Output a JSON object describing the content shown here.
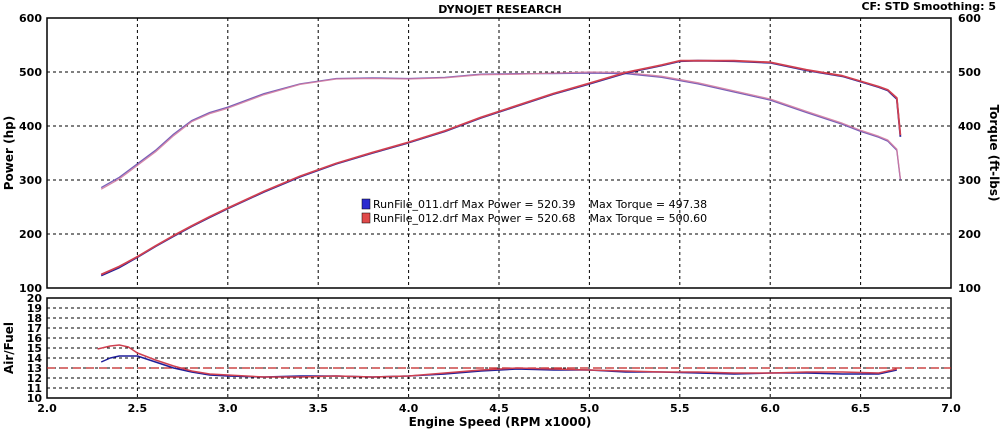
{
  "header": {
    "title": "DYNOJET RESEARCH",
    "settings": "CF: STD  Smoothing: 5"
  },
  "colors": {
    "run1": "#1f1f9a",
    "run2": "#d04050",
    "run1_swatch": "#2a2ad0",
    "run2_swatch": "#e04a4a",
    "grid": "#000000",
    "reference_line": "#c02020"
  },
  "legend": {
    "rows": [
      {
        "text": "RunFile_011.drf Max Power = 520.39    Max Torque = 497.38"
      },
      {
        "text": "RunFile_012.drf Max Power = 520.68    Max Torque = 500.60"
      }
    ]
  },
  "chart_data": [
    {
      "type": "line",
      "title": "DYNOJET RESEARCH",
      "xlabel": "",
      "ylabel": "Power (hp)",
      "y2label": "Torque (ft-lbs)",
      "xlim": [
        2.0,
        7.0
      ],
      "ylim": [
        100,
        600
      ],
      "y2lim": [
        100,
        600
      ],
      "y_ticks": [
        "100",
        "200",
        "300",
        "400",
        "500",
        "600"
      ],
      "y2_ticks": [
        "100",
        "200",
        "300",
        "400",
        "500",
        "600"
      ],
      "grid": true,
      "legend_position": "center",
      "series": [
        {
          "name": "RunFile_011.drf",
          "measure": "power",
          "x": [
            2.3,
            2.4,
            2.5,
            2.6,
            2.7,
            2.8,
            2.9,
            3.0,
            3.2,
            3.4,
            3.6,
            3.8,
            4.0,
            4.2,
            4.4,
            4.6,
            4.8,
            5.0,
            5.2,
            5.4,
            5.5,
            5.6,
            5.8,
            6.0,
            6.2,
            6.4,
            6.5,
            6.6,
            6.65,
            6.7,
            6.72
          ],
          "y": [
            123,
            138,
            157,
            177,
            196,
            214,
            231,
            247,
            278,
            306,
            330,
            350,
            369,
            390,
            415,
            437,
            459,
            478,
            498,
            512,
            520,
            521,
            520,
            517,
            503,
            492,
            482,
            472,
            466,
            450,
            380
          ]
        },
        {
          "name": "RunFile_012.drf",
          "measure": "power",
          "x": [
            2.3,
            2.4,
            2.5,
            2.6,
            2.7,
            2.8,
            2.9,
            3.0,
            3.2,
            3.4,
            3.6,
            3.8,
            4.0,
            4.2,
            4.4,
            4.6,
            4.8,
            5.0,
            5.2,
            5.4,
            5.5,
            5.6,
            5.8,
            6.0,
            6.2,
            6.4,
            6.5,
            6.6,
            6.65,
            6.7,
            6.72
          ],
          "y": [
            125,
            140,
            158,
            178,
            197,
            215,
            232,
            248,
            279,
            307,
            331,
            351,
            370,
            391,
            416,
            438,
            460,
            479,
            499,
            513,
            521,
            521,
            521,
            518,
            504,
            493,
            483,
            473,
            467,
            452,
            383
          ]
        },
        {
          "name": "RunFile_011.drf",
          "measure": "torque",
          "x": [
            2.3,
            2.4,
            2.5,
            2.6,
            2.7,
            2.8,
            2.9,
            3.0,
            3.2,
            3.4,
            3.6,
            3.8,
            4.0,
            4.2,
            4.4,
            4.6,
            4.8,
            5.0,
            5.2,
            5.4,
            5.6,
            5.8,
            6.0,
            6.2,
            6.4,
            6.5,
            6.6,
            6.65,
            6.7,
            6.72
          ],
          "y": [
            286,
            305,
            330,
            355,
            385,
            410,
            425,
            435,
            460,
            478,
            488,
            489,
            488,
            490,
            496,
            497,
            497,
            498,
            497,
            490,
            478,
            463,
            448,
            425,
            403,
            390,
            379,
            372,
            355,
            300
          ]
        },
        {
          "name": "RunFile_012.drf",
          "measure": "torque",
          "x": [
            2.3,
            2.4,
            2.5,
            2.6,
            2.7,
            2.8,
            2.9,
            3.0,
            3.2,
            3.4,
            3.6,
            3.8,
            4.0,
            4.2,
            4.4,
            4.6,
            4.8,
            5.0,
            5.2,
            5.4,
            5.6,
            5.8,
            6.0,
            6.2,
            6.4,
            6.5,
            6.6,
            6.65,
            6.7,
            6.72
          ],
          "y": [
            283,
            302,
            327,
            352,
            382,
            408,
            423,
            433,
            458,
            477,
            487,
            488,
            487,
            489,
            495,
            496,
            498,
            500,
            499,
            492,
            480,
            465,
            450,
            427,
            405,
            392,
            381,
            374,
            357,
            302
          ]
        }
      ]
    },
    {
      "type": "line",
      "xlabel": "Engine Speed (RPM x1000)",
      "ylabel": "Air/Fuel",
      "xlim": [
        2.0,
        7.0
      ],
      "ylim": [
        10,
        20
      ],
      "x_ticks": [
        "2.0",
        "2.5",
        "3.0",
        "3.5",
        "4.0",
        "4.5",
        "5.0",
        "5.5",
        "6.0",
        "6.5",
        "7.0"
      ],
      "y_ticks": [
        "10",
        "12",
        "14",
        "16",
        "18",
        "20"
      ],
      "y_minor_ticks": [
        "11",
        "13",
        "15",
        "17",
        "19"
      ],
      "grid": true,
      "reference_line": 13,
      "series": [
        {
          "name": "RunFile_011.drf",
          "x": [
            2.3,
            2.35,
            2.4,
            2.5,
            2.6,
            2.7,
            2.8,
            2.9,
            3.0,
            3.2,
            3.4,
            3.6,
            3.8,
            4.0,
            4.2,
            4.4,
            4.6,
            4.8,
            5.0,
            5.2,
            5.4,
            5.6,
            5.8,
            6.0,
            6.2,
            6.4,
            6.6,
            6.7
          ],
          "y": [
            13.6,
            14.0,
            14.2,
            14.2,
            13.6,
            13.0,
            12.6,
            12.3,
            12.2,
            12.1,
            12.2,
            12.2,
            12.1,
            12.2,
            12.4,
            12.7,
            12.9,
            12.8,
            12.8,
            12.6,
            12.6,
            12.5,
            12.4,
            12.5,
            12.5,
            12.4,
            12.4,
            12.8
          ]
        },
        {
          "name": "RunFile_012.drf",
          "x": [
            2.28,
            2.35,
            2.4,
            2.45,
            2.5,
            2.6,
            2.7,
            2.8,
            2.9,
            3.0,
            3.2,
            3.4,
            3.6,
            3.8,
            4.0,
            4.2,
            4.4,
            4.6,
            4.8,
            5.0,
            5.2,
            5.4,
            5.6,
            5.8,
            6.0,
            6.2,
            6.4,
            6.6,
            6.7
          ],
          "y": [
            14.9,
            15.2,
            15.3,
            15.1,
            14.5,
            13.8,
            13.2,
            12.7,
            12.4,
            12.3,
            12.1,
            12.1,
            12.2,
            12.1,
            12.2,
            12.5,
            12.8,
            13.0,
            12.9,
            12.8,
            12.7,
            12.6,
            12.6,
            12.5,
            12.5,
            12.6,
            12.6,
            12.5,
            12.9
          ]
        }
      ]
    }
  ]
}
